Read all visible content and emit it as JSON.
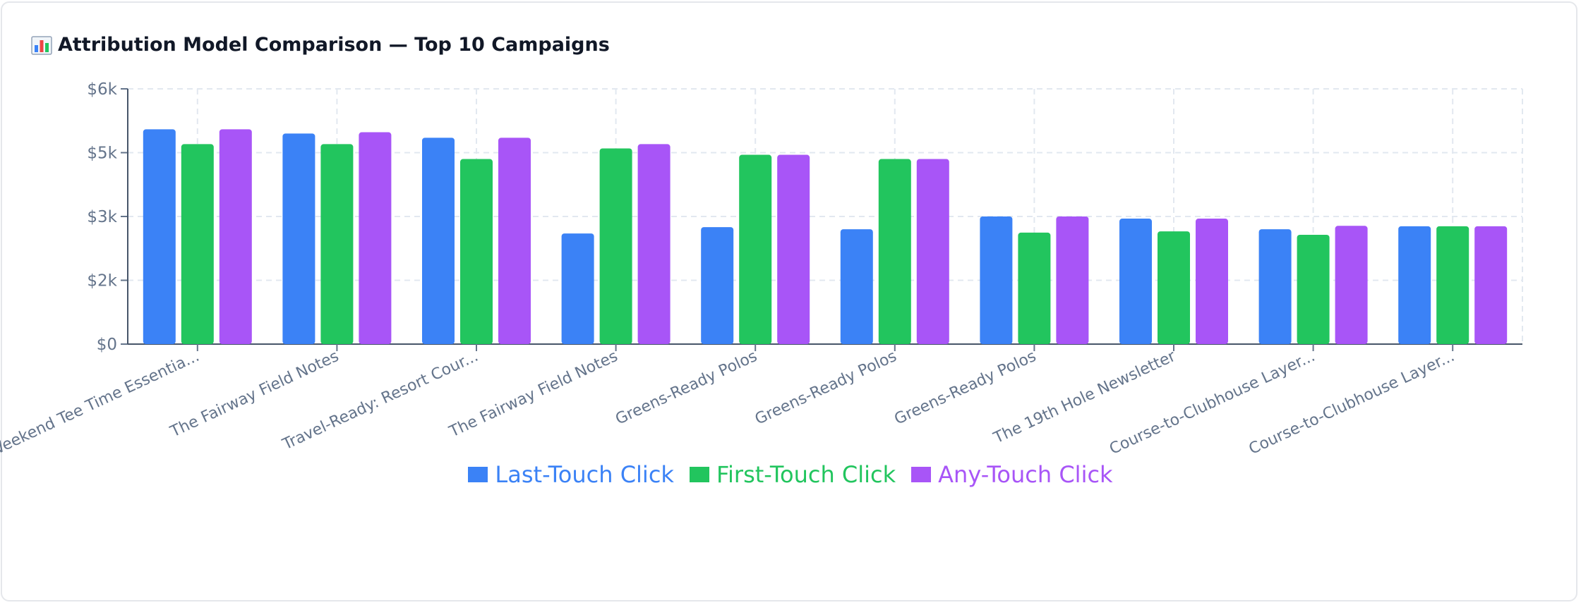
{
  "card": {
    "title": "Attribution Model Comparison — Top 10 Campaigns",
    "title_icon": "bar-chart-icon"
  },
  "chart_data": {
    "type": "bar",
    "title": "Attribution Model Comparison — Top 10 Campaigns",
    "xlabel": "",
    "ylabel": "",
    "categories": [
      "Weekend Tee Time Essentia...",
      "The Fairway Field Notes",
      "Travel-Ready: Resort Cour...",
      "The Fairway Field Notes",
      "Greens-Ready Polos",
      "Greens-Ready Polos",
      "Greens-Ready Polos",
      "The 19th Hole Newsletter",
      "Course-to-Clubhouse Layer...",
      "Course-to-Clubhouse Layer..."
    ],
    "series": [
      {
        "name": "Last-Touch Click",
        "color": "#3b82f6",
        "values": [
          5050,
          4950,
          4850,
          2600,
          2750,
          2700,
          3000,
          2950,
          2700,
          2770
        ]
      },
      {
        "name": "First-Touch Click",
        "color": "#22c55e",
        "values": [
          4700,
          4700,
          4350,
          4600,
          4450,
          4350,
          2620,
          2650,
          2570,
          2770
        ]
      },
      {
        "name": "Any-Touch Click",
        "color": "#a855f7",
        "values": [
          5050,
          4980,
          4850,
          4700,
          4450,
          4350,
          3000,
          2950,
          2780,
          2770
        ]
      }
    ],
    "y_ticks": [
      "$0",
      "$2k",
      "$3k",
      "$5k",
      "$6k"
    ],
    "ylim": [
      0,
      6000
    ],
    "grid": true,
    "legend_position": "bottom-center"
  }
}
